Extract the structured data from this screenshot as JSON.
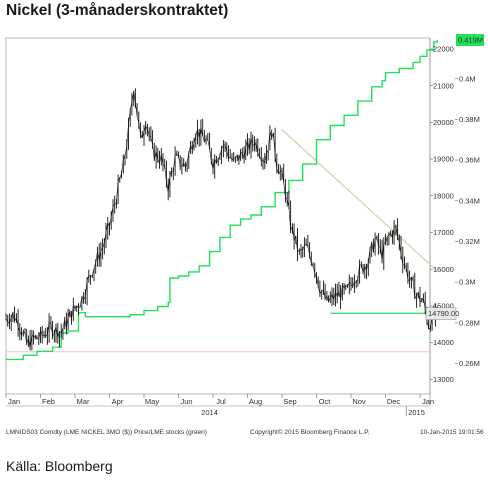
{
  "title": "Nickel (3-månaderskontraktet)",
  "source": "Källa: Bloomberg",
  "footer": {
    "left": "LMNIDS03 Comdty (LME NICKEL 3MO ($)) Price/LME stocks (green)",
    "center": "Copyright© 2015 Bloomberg Finance L.P.",
    "right": "10-Jan-2015 19:01:56"
  },
  "colors": {
    "price": "#111111",
    "stocks": "#22e05a",
    "trend_line": "#d8cfa8",
    "support_line": "#22e05a",
    "level_line": "#f2c6c6",
    "last_price_box": "#e8e8e8",
    "last_stock_box": "#22e05a"
  },
  "chart_data": {
    "type": "line",
    "x_tick_labels": [
      "Jan",
      "Feb",
      "Mar",
      "Apr",
      "May",
      "Jun",
      "Jul",
      "Aug",
      "Sep",
      "Oct",
      "Nov",
      "Dec",
      "Jan"
    ],
    "year_labels": [
      "2014",
      "2015"
    ],
    "y_left_ticks": [
      13000,
      14000,
      15000,
      16000,
      17000,
      18000,
      19000,
      20000,
      21000,
      22000
    ],
    "y_right_ticks": [
      "0.26M",
      "0.28M",
      "0.3M",
      "0.32M",
      "0.34M",
      "0.36M",
      "0.38M",
      "0.4M"
    ],
    "ylim_left": [
      12600,
      22300
    ],
    "ylim_right": [
      0.245,
      0.42
    ],
    "last_price_label": "14790.00",
    "last_stock_label": "0.419M",
    "series": [
      {
        "name": "LME NICKEL 3MO ($)",
        "axis": "left",
        "x": [
          0,
          0.2,
          0.35,
          0.6,
          0.8,
          1.0,
          1.3,
          1.6,
          1.9,
          2.2,
          2.5,
          2.8,
          3.0,
          3.2,
          3.4,
          3.55,
          3.7,
          3.9,
          4.05,
          4.25,
          4.5,
          4.7,
          4.9,
          5.2,
          5.5,
          5.8,
          6.0,
          6.3,
          6.6,
          6.9,
          7.2,
          7.5,
          7.7,
          7.85,
          8.0,
          8.1,
          8.25,
          8.5,
          8.7,
          8.9,
          9.1,
          9.3,
          9.6,
          9.9,
          10.1,
          10.3,
          10.5,
          10.7,
          10.9,
          11.1,
          11.3,
          11.5,
          11.7,
          11.9,
          12.1,
          12.25,
          12.4,
          12.5
        ],
        "values": [
          14650,
          14750,
          14600,
          13950,
          14100,
          14150,
          14400,
          14300,
          14800,
          15200,
          16000,
          16600,
          17200,
          18000,
          18800,
          19800,
          21000,
          19500,
          20100,
          19200,
          19000,
          18250,
          19000,
          18800,
          19800,
          19500,
          18900,
          19400,
          18900,
          19200,
          19500,
          19000,
          19800,
          18900,
          18500,
          18100,
          17200,
          16400,
          16600,
          16200,
          15500,
          15100,
          15300,
          15400,
          15800,
          16000,
          16250,
          16800,
          16400,
          16900,
          17100,
          16300,
          15700,
          15300,
          15100,
          14500,
          14700,
          14790
        ]
      },
      {
        "name": "LME stocks",
        "axis": "right",
        "x": [
          0,
          0.5,
          0.9,
          1.35,
          1.6,
          1.8,
          2.1,
          2.3,
          2.7,
          3.1,
          3.6,
          4.0,
          4.4,
          4.7,
          4.75,
          5.0,
          5.3,
          5.6,
          5.9,
          6.2,
          6.5,
          6.8,
          7.1,
          7.4,
          7.8,
          8.2,
          8.6,
          9.0,
          9.4,
          9.8,
          10.2,
          10.6,
          10.9,
          11.0,
          11.4,
          11.8,
          12.0,
          12.2,
          12.4,
          12.5
        ],
        "values": [
          0.262,
          0.264,
          0.266,
          0.268,
          0.275,
          0.276,
          0.285,
          0.283,
          0.283,
          0.283,
          0.284,
          0.286,
          0.288,
          0.29,
          0.302,
          0.303,
          0.305,
          0.308,
          0.315,
          0.322,
          0.328,
          0.331,
          0.333,
          0.337,
          0.344,
          0.35,
          0.358,
          0.37,
          0.377,
          0.382,
          0.389,
          0.396,
          0.399,
          0.403,
          0.405,
          0.408,
          0.411,
          0.414,
          0.418,
          0.419
        ]
      }
    ],
    "annotations": [
      {
        "type": "trend_line",
        "axis": "left",
        "x": [
          8.0,
          12.5
        ],
        "y": [
          19800,
          15950
        ]
      },
      {
        "type": "support_line",
        "axis": "left",
        "x": [
          9.4,
          12.5
        ],
        "y": [
          14800,
          14800
        ]
      },
      {
        "type": "level_line",
        "axis": "left",
        "x": [
          0,
          12.5
        ],
        "y": [
          13750,
          13750
        ]
      }
    ],
    "grid": false,
    "legend": "none"
  }
}
